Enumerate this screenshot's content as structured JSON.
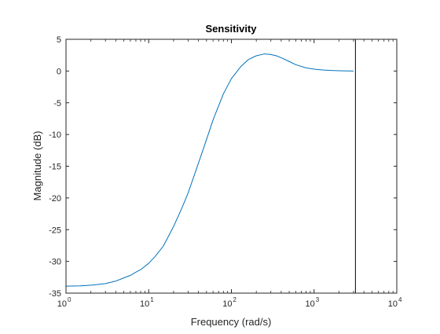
{
  "chart_data": {
    "type": "line",
    "title": "Sensitivity",
    "xlabel": "Frequency  (rad/s)",
    "ylabel": "Magnitude (dB)",
    "xscale": "log",
    "xlim": [
      1,
      10000
    ],
    "ylim": [
      -35,
      5
    ],
    "grid": false,
    "x_ticks": [
      {
        "value": 1,
        "base": "10",
        "exp": "0"
      },
      {
        "value": 10,
        "base": "10",
        "exp": "1"
      },
      {
        "value": 100,
        "base": "10",
        "exp": "2"
      },
      {
        "value": 1000,
        "base": "10",
        "exp": "3"
      },
      {
        "value": 10000,
        "base": "10",
        "exp": "4"
      }
    ],
    "y_ticks": [
      {
        "value": 5,
        "label": "5"
      },
      {
        "value": 0,
        "label": "0"
      },
      {
        "value": -5,
        "label": "-5"
      },
      {
        "value": -10,
        "label": "-10"
      },
      {
        "value": -15,
        "label": "-15"
      },
      {
        "value": -20,
        "label": "-20"
      },
      {
        "value": -25,
        "label": "-25"
      },
      {
        "value": -30,
        "label": "-30"
      },
      {
        "value": -35,
        "label": "-35"
      }
    ],
    "series": [
      {
        "color": "#0072bd",
        "x": [
          1,
          1.5,
          2,
          3,
          4,
          5,
          6,
          7,
          8,
          10,
          12,
          15,
          20,
          25,
          30,
          40,
          50,
          60,
          80,
          100,
          130,
          160,
          200,
          250,
          300,
          350,
          400,
          500,
          600,
          800,
          1000,
          1300,
          1600,
          2000,
          2500,
          3000
        ],
        "y": [
          -33.9,
          -33.85,
          -33.75,
          -33.5,
          -33.1,
          -32.6,
          -32.2,
          -31.7,
          -31.3,
          -30.3,
          -29.2,
          -27.6,
          -24.5,
          -21.7,
          -19.2,
          -14.5,
          -10.8,
          -7.7,
          -3.6,
          -1.2,
          0.7,
          1.8,
          2.4,
          2.7,
          2.6,
          2.4,
          2.1,
          1.5,
          1.0,
          0.5,
          0.3,
          0.15,
          0.1,
          0.05,
          0.02,
          0.0
        ]
      }
    ],
    "annotations": [
      {
        "type": "vline",
        "x": 3162,
        "color": "#000000"
      }
    ]
  }
}
